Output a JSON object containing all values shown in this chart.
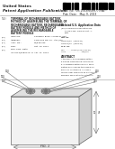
{
  "page_bg": "#ffffff",
  "header_bg": "#ffffff",
  "text_dark": "#222222",
  "text_mid": "#444444",
  "text_light": "#888888",
  "line_color": "#666666",
  "battery_front": "#f2f2f2",
  "battery_top": "#e0e0e0",
  "battery_right": "#d0d0d0",
  "terminal_outer": "#c8c8c8",
  "terminal_mid": "#a0a0a0",
  "terminal_inner": "#787878",
  "title_line1": "United States",
  "title_line2": "Patent Application Publication",
  "pub_label": "Pub. No.: US 2013/0089773 A1",
  "pub_date": "Pub. Date:   May 9, 2013",
  "fig_label": "FIG. 1"
}
